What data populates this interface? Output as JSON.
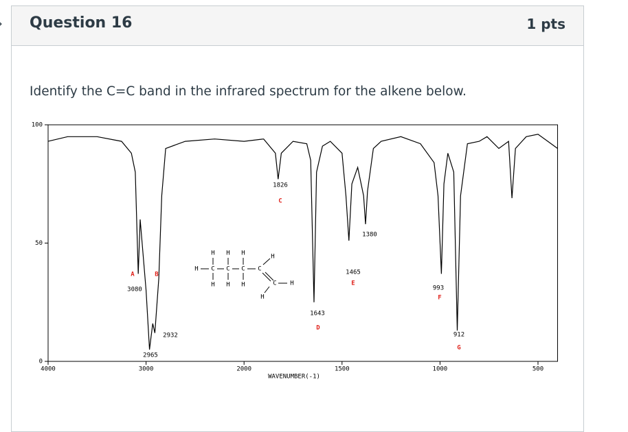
{
  "header": {
    "title": "Question 16",
    "points": "1 pts"
  },
  "question": "Identify the C=C band in the infrared spectrum for the alkene below.",
  "chart_data": {
    "type": "line",
    "x_label": "WAVENUMBER(-1)",
    "x": [
      4000,
      3800,
      3500,
      3250,
      3150,
      3110,
      3080,
      3060,
      3000,
      2975,
      2965,
      2950,
      2932,
      2910,
      2870,
      2840,
      2800,
      2600,
      2300,
      2000,
      1900,
      1840,
      1826,
      1810,
      1750,
      1680,
      1660,
      1643,
      1630,
      1600,
      1560,
      1500,
      1480,
      1465,
      1450,
      1420,
      1390,
      1380,
      1370,
      1340,
      1300,
      1200,
      1100,
      1030,
      1010,
      993,
      980,
      960,
      930,
      912,
      895,
      860,
      800,
      760,
      700,
      650,
      633,
      615,
      560,
      500,
      450,
      400
    ],
    "series": [
      {
        "name": "Transmittance",
        "color": "#000000",
        "values": [
          93,
          95,
          95,
          93,
          88,
          80,
          37,
          60,
          30,
          12,
          5,
          10,
          16,
          12,
          35,
          70,
          90,
          93,
          94,
          93,
          94,
          88,
          77,
          88,
          93,
          92,
          85,
          25,
          80,
          91,
          93,
          88,
          70,
          51,
          75,
          82,
          70,
          58,
          72,
          90,
          93,
          95,
          92,
          84,
          70,
          37,
          75,
          88,
          80,
          13,
          70,
          92,
          93,
          95,
          90,
          93,
          69,
          90,
          95,
          96,
          93,
          90
        ]
      }
    ],
    "annotations": [
      "1826",
      "C",
      "1380",
      "1465",
      "E",
      "A",
      "B",
      "3080",
      "2932",
      "2965",
      "1643",
      "D",
      "993",
      "F",
      "912",
      "G"
    ],
    "structure": [
      "H",
      "H",
      "H",
      "H",
      "H",
      "C",
      "C",
      "C",
      "C",
      "H",
      "H",
      "H",
      "C",
      "H",
      "H"
    ],
    "xlim": [
      4000,
      400
    ],
    "ylim": [
      0,
      100
    ],
    "xticks": [
      4000,
      3000,
      2000,
      1500,
      1000,
      500
    ],
    "yticks": [
      0,
      50,
      100
    ]
  }
}
